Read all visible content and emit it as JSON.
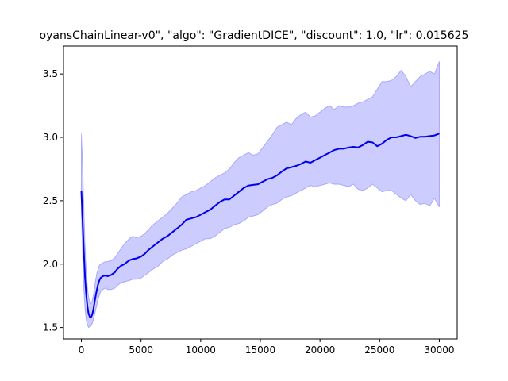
{
  "chart_data": {
    "type": "line",
    "title": "oyansChainLinear-v0\", \"algo\": \"GradientDICE\", \"discount\": 1.0, \"lr\": 0.015625",
    "xlabel": "",
    "ylabel": "",
    "xlim": [
      -1500,
      31500
    ],
    "ylim": [
      1.41,
      3.72
    ],
    "xticks": [
      0,
      5000,
      10000,
      15000,
      20000,
      25000,
      30000
    ],
    "yticks": [
      1.5,
      2.0,
      2.5,
      3.0,
      3.5
    ],
    "grid": false,
    "legend": "none",
    "colors": {
      "line": "#0000ee",
      "band": "#0000ff"
    },
    "series": [
      {
        "x": [
          0,
          100,
          200,
          300,
          400,
          500,
          600,
          700,
          800,
          900,
          1000,
          1100,
          1200,
          1300,
          1400,
          1500,
          1600,
          1800,
          2000,
          2200,
          2500,
          2800,
          3000,
          3300,
          3600,
          4000,
          4300,
          4600,
          5000,
          5300,
          5600,
          6000,
          6400,
          6800,
          7200,
          7600,
          8000,
          8400,
          8800,
          9200,
          9600,
          10000,
          10400,
          10800,
          11200,
          11600,
          12000,
          12400,
          12800,
          13200,
          13600,
          14000,
          14400,
          14800,
          15200,
          15600,
          16000,
          16400,
          16800,
          17200,
          17600,
          18000,
          18400,
          18800,
          19200,
          19600,
          20000,
          20400,
          20800,
          21200,
          21600,
          22000,
          22400,
          22800,
          23200,
          23600,
          24000,
          24400,
          24800,
          25200,
          25600,
          26000,
          26400,
          26800,
          27200,
          27600,
          28000,
          28400,
          28800,
          29200,
          29600,
          30000
        ],
        "mean": [
          2.58,
          2.35,
          2.1,
          1.9,
          1.76,
          1.67,
          1.61,
          1.585,
          1.58,
          1.6,
          1.64,
          1.7,
          1.75,
          1.8,
          1.84,
          1.87,
          1.89,
          1.905,
          1.91,
          1.905,
          1.915,
          1.935,
          1.96,
          1.985,
          2.0,
          2.03,
          2.04,
          2.045,
          2.06,
          2.08,
          2.11,
          2.14,
          2.17,
          2.2,
          2.22,
          2.25,
          2.28,
          2.31,
          2.35,
          2.36,
          2.37,
          2.39,
          2.41,
          2.43,
          2.46,
          2.49,
          2.51,
          2.51,
          2.54,
          2.57,
          2.6,
          2.62,
          2.625,
          2.63,
          2.65,
          2.67,
          2.68,
          2.7,
          2.73,
          2.755,
          2.765,
          2.775,
          2.79,
          2.81,
          2.8,
          2.82,
          2.84,
          2.86,
          2.88,
          2.9,
          2.91,
          2.91,
          2.92,
          2.925,
          2.92,
          2.94,
          2.965,
          2.96,
          2.93,
          2.95,
          2.98,
          3.0,
          3.0,
          3.01,
          3.02,
          3.01,
          2.995,
          3.005,
          3.005,
          3.01,
          3.015,
          3.03
        ],
        "upper": [
          3.03,
          2.8,
          2.45,
          2.15,
          1.95,
          1.82,
          1.74,
          1.7,
          1.69,
          1.71,
          1.75,
          1.82,
          1.88,
          1.93,
          1.96,
          1.99,
          2.0,
          2.01,
          2.02,
          2.02,
          2.03,
          2.05,
          2.08,
          2.12,
          2.16,
          2.2,
          2.22,
          2.21,
          2.22,
          2.24,
          2.27,
          2.31,
          2.34,
          2.37,
          2.4,
          2.44,
          2.48,
          2.53,
          2.55,
          2.57,
          2.58,
          2.6,
          2.62,
          2.65,
          2.68,
          2.7,
          2.72,
          2.75,
          2.8,
          2.84,
          2.86,
          2.88,
          2.86,
          2.87,
          2.92,
          2.97,
          3.02,
          3.08,
          3.1,
          3.12,
          3.1,
          3.15,
          3.18,
          3.2,
          3.16,
          3.17,
          3.2,
          3.23,
          3.25,
          3.22,
          3.25,
          3.24,
          3.24,
          3.25,
          3.27,
          3.28,
          3.3,
          3.32,
          3.38,
          3.44,
          3.44,
          3.45,
          3.48,
          3.53,
          3.48,
          3.4,
          3.44,
          3.48,
          3.5,
          3.52,
          3.5,
          3.6
        ],
        "lower": [
          2.4,
          2.1,
          1.8,
          1.65,
          1.56,
          1.52,
          1.5,
          1.505,
          1.51,
          1.53,
          1.56,
          1.6,
          1.64,
          1.68,
          1.72,
          1.75,
          1.78,
          1.8,
          1.81,
          1.8,
          1.8,
          1.81,
          1.83,
          1.85,
          1.86,
          1.87,
          1.88,
          1.88,
          1.89,
          1.91,
          1.93,
          1.96,
          1.98,
          2.02,
          2.04,
          2.07,
          2.09,
          2.11,
          2.12,
          2.14,
          2.16,
          2.18,
          2.2,
          2.2,
          2.22,
          2.25,
          2.28,
          2.29,
          2.31,
          2.32,
          2.34,
          2.37,
          2.38,
          2.39,
          2.42,
          2.45,
          2.47,
          2.48,
          2.51,
          2.53,
          2.54,
          2.56,
          2.58,
          2.6,
          2.62,
          2.61,
          2.62,
          2.63,
          2.64,
          2.63,
          2.63,
          2.62,
          2.61,
          2.63,
          2.59,
          2.58,
          2.6,
          2.63,
          2.6,
          2.57,
          2.58,
          2.58,
          2.55,
          2.52,
          2.5,
          2.55,
          2.5,
          2.47,
          2.48,
          2.46,
          2.52,
          2.45
        ]
      }
    ]
  }
}
